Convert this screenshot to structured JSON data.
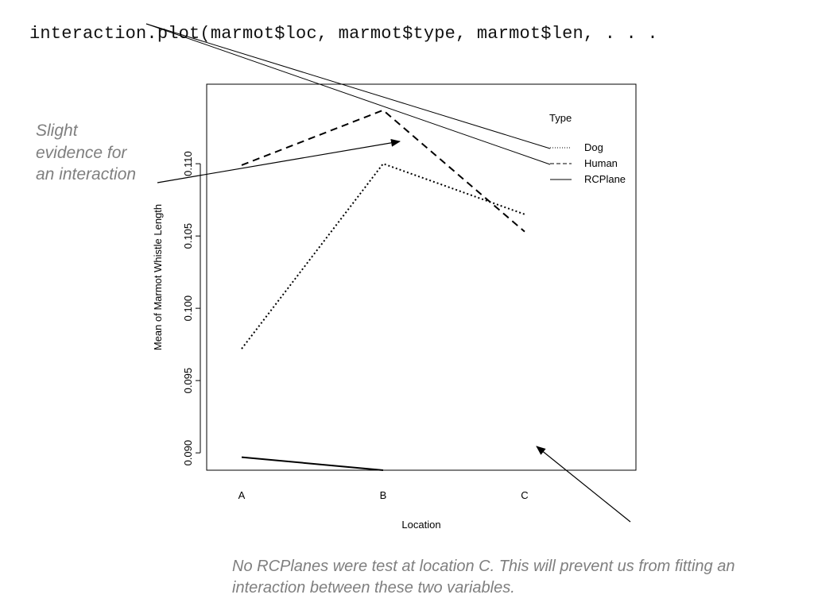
{
  "code": {
    "text": "interaction.plot(marmot$loc, marmot$type, marmot$len, . . ."
  },
  "annotations": {
    "left_note": "Slight evidence for an interaction",
    "bottom_note": "No RCPlanes were test at location C.  This will prevent us from fitting an interaction between these two variables."
  },
  "chart_data": {
    "type": "line",
    "xlabel": "Location",
    "ylabel": "Mean of Marmot Whistle Length",
    "categories": [
      "A",
      "B",
      "C"
    ],
    "y_ticks": [
      0.09,
      0.095,
      0.1,
      0.105,
      0.11
    ],
    "y_tick_labels": [
      "0.090",
      "0.095",
      "0.100",
      "0.105",
      "0.110"
    ],
    "ylim": [
      0.0888,
      0.1155
    ],
    "legend": {
      "title": "Type",
      "position": "top-right",
      "entries": [
        {
          "name": "Dog",
          "style": "dotted"
        },
        {
          "name": "Human",
          "style": "dashed"
        },
        {
          "name": "RCPlane",
          "style": "solid"
        }
      ]
    },
    "series": [
      {
        "name": "Dog",
        "style": "dotted",
        "values": [
          0.0972,
          0.11,
          0.1065
        ]
      },
      {
        "name": "Human",
        "style": "dashed",
        "values": [
          0.1099,
          0.1137,
          0.1053
        ]
      },
      {
        "name": "RCPlane",
        "style": "solid",
        "values": [
          0.0897,
          0.0888,
          null
        ]
      }
    ]
  }
}
